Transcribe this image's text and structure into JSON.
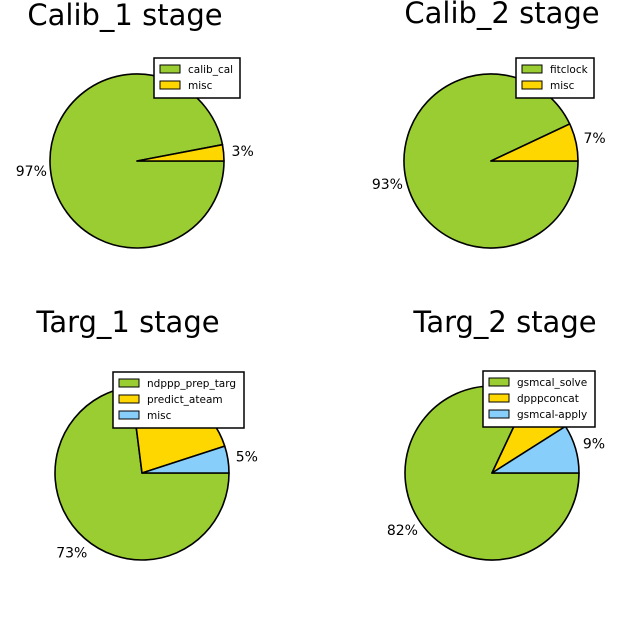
{
  "chart_data": [
    {
      "type": "pie",
      "title": "Calib_1 stage",
      "legend_position": "top-right",
      "slices": [
        {
          "label": "calib_cal",
          "value": 97,
          "color": "#9acd32"
        },
        {
          "label": "misc",
          "value": 3,
          "color": "#ffd700"
        }
      ]
    },
    {
      "type": "pie",
      "title": "Calib_2 stage",
      "legend_position": "top-right",
      "slices": [
        {
          "label": "fitclock",
          "value": 93,
          "color": "#9acd32"
        },
        {
          "label": "misc",
          "value": 7,
          "color": "#ffd700"
        }
      ]
    },
    {
      "type": "pie",
      "title": "Targ_1 stage",
      "legend_position": "top-right",
      "slices": [
        {
          "label": "ndppp_prep_targ",
          "value": 73,
          "color": "#9acd32"
        },
        {
          "label": "predict_ateam",
          "value": 22,
          "color": "#ffd700"
        },
        {
          "label": "misc",
          "value": 5,
          "color": "#87cefa"
        }
      ]
    },
    {
      "type": "pie",
      "title": "Targ_2 stage",
      "legend_position": "top-right",
      "slices": [
        {
          "label": "gsmcal_solve",
          "value": 82,
          "color": "#9acd32"
        },
        {
          "label": "dpppconcat",
          "value": 9,
          "color": "#ffd700"
        },
        {
          "label": "gsmcal-apply",
          "value": 9,
          "color": "#87cefa"
        }
      ]
    }
  ]
}
